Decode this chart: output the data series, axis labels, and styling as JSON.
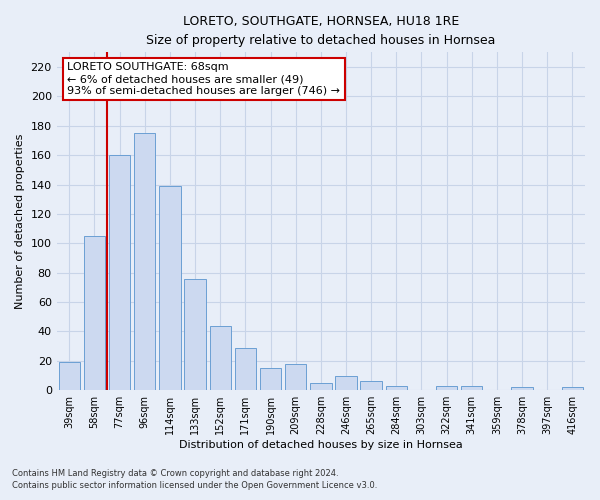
{
  "title": "LORETO, SOUTHGATE, HORNSEA, HU18 1RE",
  "subtitle": "Size of property relative to detached houses in Hornsea",
  "xlabel": "Distribution of detached houses by size in Hornsea",
  "ylabel": "Number of detached properties",
  "categories": [
    "39sqm",
    "58sqm",
    "77sqm",
    "96sqm",
    "114sqm",
    "133sqm",
    "152sqm",
    "171sqm",
    "190sqm",
    "209sqm",
    "228sqm",
    "246sqm",
    "265sqm",
    "284sqm",
    "303sqm",
    "322sqm",
    "341sqm",
    "359sqm",
    "378sqm",
    "397sqm",
    "416sqm"
  ],
  "values": [
    19,
    105,
    160,
    175,
    139,
    76,
    44,
    29,
    15,
    18,
    5,
    10,
    6,
    3,
    0,
    3,
    3,
    0,
    2,
    0,
    2
  ],
  "bar_color": "#ccd9f0",
  "bar_edge_color": "#6b9fd4",
  "vline_color": "#cc0000",
  "vline_x": 1.5,
  "annotation_text": "LORETO SOUTHGATE: 68sqm\n← 6% of detached houses are smaller (49)\n93% of semi-detached houses are larger (746) →",
  "annotation_box_color": "#ffffff",
  "annotation_box_edge": "#cc0000",
  "ylim": [
    0,
    230
  ],
  "yticks": [
    0,
    20,
    40,
    60,
    80,
    100,
    120,
    140,
    160,
    180,
    200,
    220
  ],
  "grid_color": "#c8d4e8",
  "bg_color": "#e8eef8",
  "footer1": "Contains HM Land Registry data © Crown copyright and database right 2024.",
  "footer2": "Contains public sector information licensed under the Open Government Licence v3.0."
}
